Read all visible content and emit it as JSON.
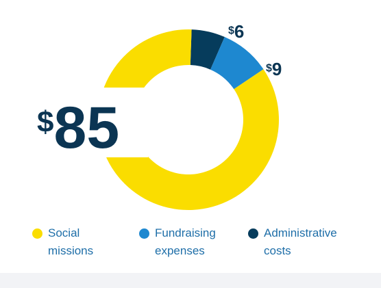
{
  "chart_data": {
    "type": "pie",
    "categories": [
      "Social missions",
      "Fundraising expenses",
      "Administrative costs"
    ],
    "values": [
      85,
      9,
      6
    ],
    "value_labels": [
      "$85",
      "$9",
      "$6"
    ],
    "colors": [
      "#FADD00",
      "#1E88D0",
      "#063C5C"
    ],
    "legend_placement": "bottom",
    "donut": true
  },
  "legend": {
    "items": [
      {
        "label": "Social\nmissions",
        "color": "#FADD00"
      },
      {
        "label": "Fundraising\nexpenses",
        "color": "#1E88D0"
      },
      {
        "label": "Administrative\ncosts",
        "color": "#063C5C"
      }
    ]
  },
  "colors": {
    "label_text": "#0B3553",
    "legend_text": "#1E6EA8"
  }
}
